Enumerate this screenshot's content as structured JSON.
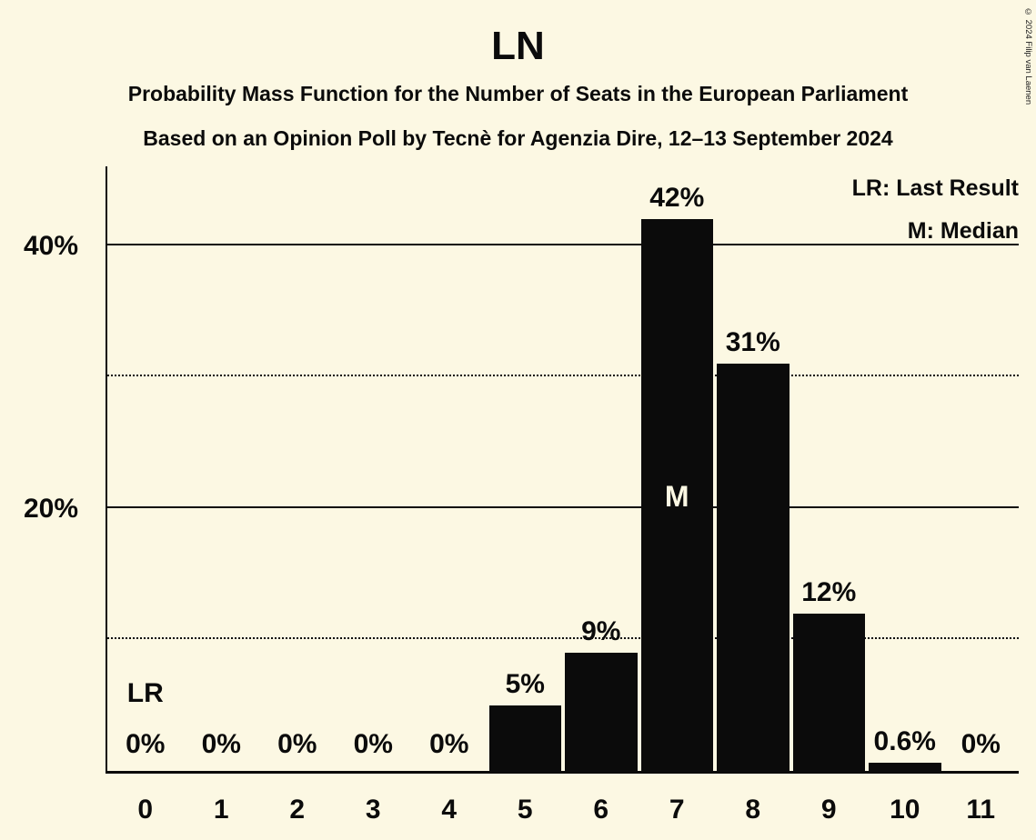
{
  "title": "LN",
  "subtitle_line1": "Probability Mass Function for the Number of Seats in the European Parliament",
  "subtitle_line2": "Based on an Opinion Poll by Tecnè for Agenzia Dire, 12–13 September 2024",
  "copyright": "© 2024 Filip van Laenen",
  "legend": {
    "last_result": "LR: Last Result",
    "median": "M: Median"
  },
  "annotations": {
    "lr_label": "LR",
    "median_label": "M"
  },
  "chart_data": {
    "type": "bar",
    "title": "LN",
    "categories": [
      "0",
      "1",
      "2",
      "3",
      "4",
      "5",
      "6",
      "7",
      "8",
      "9",
      "10",
      "11"
    ],
    "values": [
      0,
      0,
      0,
      0,
      0,
      5,
      9,
      42,
      31,
      12,
      0.6,
      0
    ],
    "value_labels": [
      "0%",
      "0%",
      "0%",
      "0%",
      "0%",
      "5%",
      "9%",
      "42%",
      "31%",
      "12%",
      "0.6%",
      "0%"
    ],
    "median_index": 7,
    "last_result_index": 0,
    "ylim": [
      0,
      46
    ],
    "yticks": [
      20,
      40
    ],
    "ytick_labels": [
      "20%",
      "40%"
    ],
    "solid_gridlines": [
      20,
      40
    ],
    "dotted_gridlines": [
      10,
      30
    ],
    "grid": "horizontal",
    "legend_position": "top-right",
    "bar_color": "#0b0b0b",
    "background_color": "#fcf8e3",
    "text_color": "#0b0b0b"
  }
}
